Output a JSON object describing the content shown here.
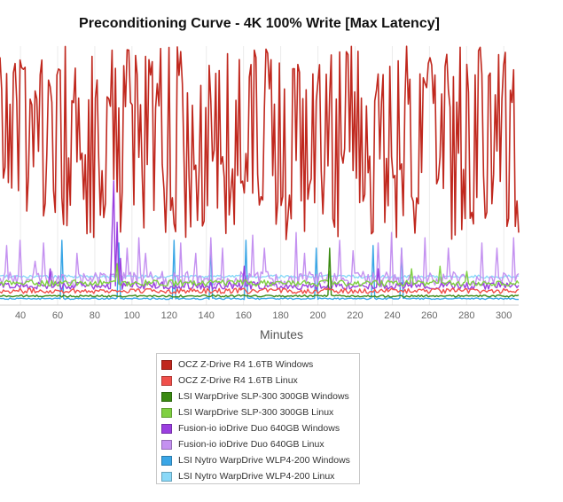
{
  "chart_data": {
    "type": "line",
    "title": "Preconditioning Curve - 4K 100% Write [Max Latency]",
    "xlabel": "Minutes",
    "ylabel": "",
    "xlim": [
      29,
      308
    ],
    "ylim": [
      0,
      100
    ],
    "x_ticks": [
      40,
      60,
      80,
      100,
      120,
      140,
      160,
      180,
      200,
      220,
      240,
      260,
      280,
      300
    ],
    "grid": true,
    "legend_position": "bottom-center",
    "series": [
      {
        "name": "OCZ Z-Drive R4 1.6TB Windows",
        "color": "#c0281e",
        "base": 70,
        "noise": 30,
        "min": 15,
        "max": 105,
        "spikes": []
      },
      {
        "name": "OCZ Z-Drive R4 1.6TB Linux",
        "color": "#f0504b",
        "base": 5.5,
        "noise": 1.0,
        "min": 4,
        "max": 8,
        "spikes": []
      },
      {
        "name": "LSI WarpDrive SLP-300 300GB Windows",
        "color": "#3a8a12",
        "base": 3.5,
        "noise": 0.4,
        "min": 2.5,
        "max": 5,
        "spikes": [
          [
            206,
            22
          ]
        ]
      },
      {
        "name": "LSI WarpDrive SLP-300 300GB Linux",
        "color": "#7fd042",
        "base": 8.5,
        "noise": 1.2,
        "min": 6.5,
        "max": 11,
        "spikes": [
          [
            92,
            16
          ],
          [
            206,
            13
          ],
          [
            250,
            14
          ],
          [
            266,
            15
          ],
          [
            280,
            13
          ]
        ]
      },
      {
        "name": "Fusion-io ioDrive Duo 640GB Windows",
        "color": "#9b3fe0",
        "base": 7.5,
        "noise": 1.5,
        "min": 5,
        "max": 11,
        "spikes": [
          [
            89,
            28
          ],
          [
            90,
            48
          ],
          [
            92,
            32
          ],
          [
            94,
            18
          ],
          [
            56,
            14
          ],
          [
            160,
            15
          ],
          [
            232,
            14
          ]
        ]
      },
      {
        "name": "Fusion-io ioDrive Duo 640GB Linux",
        "color": "#c491f0",
        "base": 10,
        "noise": 3,
        "min": 6,
        "max": 14,
        "spikes": [
          [
            33,
            23
          ],
          [
            40,
            25
          ],
          [
            48,
            17
          ],
          [
            52,
            24
          ],
          [
            70,
            20
          ],
          [
            97,
            22
          ],
          [
            104,
            26
          ],
          [
            107,
            20
          ],
          [
            126,
            24
          ],
          [
            134,
            20
          ],
          [
            142,
            26
          ],
          [
            149,
            22
          ],
          [
            165,
            27
          ],
          [
            171,
            22
          ],
          [
            188,
            28
          ],
          [
            193,
            20
          ],
          [
            212,
            25
          ],
          [
            219,
            21
          ],
          [
            232,
            24
          ],
          [
            240,
            28
          ],
          [
            245,
            22
          ],
          [
            258,
            26
          ],
          [
            270,
            22
          ],
          [
            288,
            24
          ],
          [
            296,
            22
          ],
          [
            305,
            26
          ]
        ]
      },
      {
        "name": "LSI Nytro WarpDrive WLP4-200 Windows",
        "color": "#3aa6e6",
        "base": 2.5,
        "noise": 0.3,
        "min": 1.8,
        "max": 3.5,
        "spikes": [
          [
            62,
            25
          ],
          [
            93,
            24
          ],
          [
            123,
            25
          ],
          [
            142,
            24
          ],
          [
            161,
            25
          ],
          [
            199,
            22
          ],
          [
            230,
            23
          ],
          [
            245,
            22
          ]
        ]
      },
      {
        "name": "LSI Nytro WarpDrive WLP4-200 Linux",
        "color": "#8ad9f8",
        "base": 11,
        "noise": 0.6,
        "min": 10,
        "max": 12.5,
        "spikes": []
      }
    ]
  }
}
